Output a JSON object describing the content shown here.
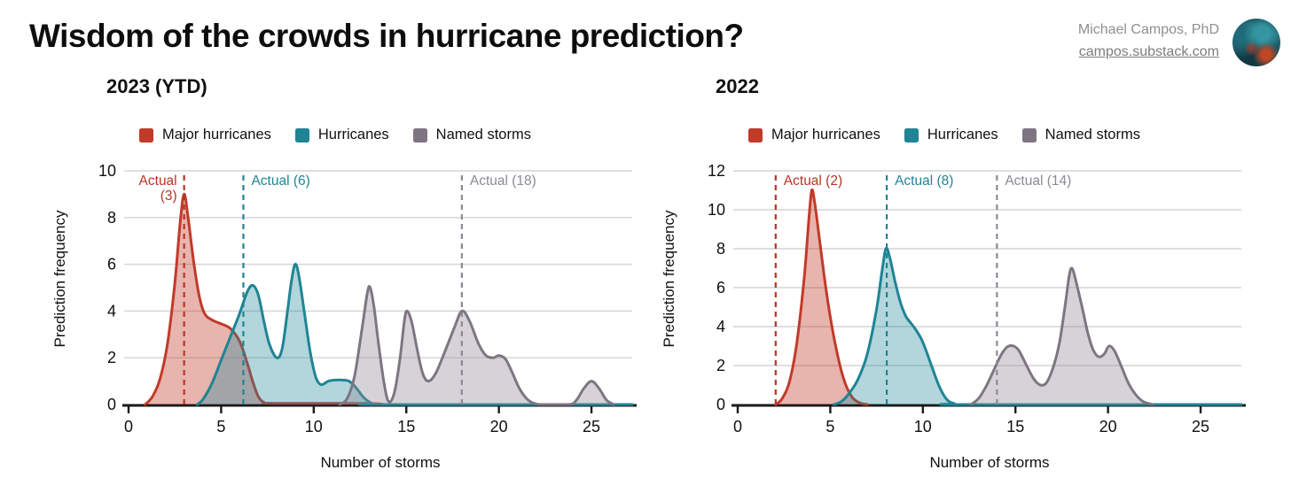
{
  "header": {
    "title": "Wisdom of the crowds in hurricane prediction?",
    "author": "Michael Campos, PhD",
    "site_link": "campos.substack.com",
    "avatar": "feather-pattern-avatar"
  },
  "colors": {
    "major_hurricanes": "#c13a2a",
    "hurricanes": "#1f8494",
    "named_storms": "#8a8390",
    "gridline": "#d4d4d4",
    "axis": "#1a1a1a"
  },
  "chart_data": [
    {
      "type": "area",
      "title": "2023 (YTD)",
      "xlabel": "Number of storms",
      "ylabel": "Prediction frequency",
      "xlim": [
        0,
        27.2
      ],
      "ylim": [
        0,
        10
      ],
      "xticks": [
        0,
        5,
        10,
        15,
        20,
        25
      ],
      "yticks": [
        0,
        2,
        4,
        6,
        8,
        10
      ],
      "grid": true,
      "legend_position": "top",
      "series": [
        {
          "name": "Major hurricanes",
          "color": "#c13a2a",
          "fill": "rgba(193,58,42,0.38)",
          "points": [
            [
              0.9,
              0
            ],
            [
              1.3,
              0.35
            ],
            [
              1.7,
              1.1
            ],
            [
              2.1,
              2.6
            ],
            [
              2.5,
              5.2
            ],
            [
              2.8,
              7.9
            ],
            [
              3,
              9
            ],
            [
              3.2,
              8.1
            ],
            [
              3.5,
              6.2
            ],
            [
              3.8,
              4.7
            ],
            [
              4.1,
              3.9
            ],
            [
              4.5,
              3.62
            ],
            [
              5,
              3.45
            ],
            [
              5.5,
              3.25
            ],
            [
              6,
              2.7
            ],
            [
              6.4,
              1.8
            ],
            [
              6.7,
              1
            ],
            [
              7,
              0.35
            ],
            [
              7.3,
              0.1
            ],
            [
              7.8,
              0.05
            ],
            [
              12.8,
              0.05
            ],
            [
              13.8,
              0
            ]
          ]
        },
        {
          "name": "Hurricanes",
          "color": "#1f8494",
          "fill": "rgba(33,137,154,0.35)",
          "points": [
            [
              3.7,
              0
            ],
            [
              4,
              0.2
            ],
            [
              4.5,
              0.9
            ],
            [
              5,
              1.9
            ],
            [
              5.5,
              2.9
            ],
            [
              6,
              3.9
            ],
            [
              6.4,
              4.8
            ],
            [
              6.7,
              5.1
            ],
            [
              7,
              4.7
            ],
            [
              7.3,
              3.6
            ],
            [
              7.6,
              2.6
            ],
            [
              8,
              2
            ],
            [
              8.3,
              2.4
            ],
            [
              8.6,
              4.1
            ],
            [
              8.8,
              5.3
            ],
            [
              9,
              6
            ],
            [
              9.2,
              5.5
            ],
            [
              9.5,
              3.9
            ],
            [
              9.8,
              2.3
            ],
            [
              10.1,
              1.2
            ],
            [
              10.4,
              0.85
            ],
            [
              10.8,
              1
            ],
            [
              11.3,
              1.05
            ],
            [
              11.9,
              1
            ],
            [
              12.3,
              0.7
            ],
            [
              12.7,
              0.3
            ],
            [
              13.1,
              0.07
            ],
            [
              13.6,
              0
            ],
            [
              27.2,
              0
            ]
          ]
        },
        {
          "name": "Named storms",
          "color": "#7d7682",
          "fill": "rgba(146,140,152,0.38)",
          "points": [
            [
              11.4,
              0
            ],
            [
              11.8,
              0.25
            ],
            [
              12.2,
              1.2
            ],
            [
              12.6,
              3.2
            ],
            [
              12.9,
              4.8
            ],
            [
              13.05,
              5
            ],
            [
              13.25,
              4.2
            ],
            [
              13.5,
              2.6
            ],
            [
              13.8,
              0.9
            ],
            [
              14.05,
              0.12
            ],
            [
              14.35,
              0.5
            ],
            [
              14.65,
              1.9
            ],
            [
              14.9,
              3.6
            ],
            [
              15.05,
              4
            ],
            [
              15.3,
              3.5
            ],
            [
              15.6,
              2.3
            ],
            [
              15.9,
              1.3
            ],
            [
              16.2,
              1
            ],
            [
              16.6,
              1.35
            ],
            [
              17.1,
              2.3
            ],
            [
              17.6,
              3.3
            ],
            [
              18,
              4
            ],
            [
              18.4,
              3.6
            ],
            [
              18.9,
              2.6
            ],
            [
              19.3,
              2.1
            ],
            [
              19.7,
              2
            ],
            [
              20,
              2.1
            ],
            [
              20.35,
              1.95
            ],
            [
              20.7,
              1.4
            ],
            [
              21.1,
              0.7
            ],
            [
              21.5,
              0.25
            ],
            [
              21.9,
              0.05
            ],
            [
              22.4,
              0
            ],
            [
              23.8,
              0
            ],
            [
              24.2,
              0.2
            ],
            [
              24.6,
              0.7
            ],
            [
              25,
              1
            ],
            [
              25.4,
              0.7
            ],
            [
              25.8,
              0.2
            ],
            [
              26.2,
              0
            ]
          ]
        }
      ],
      "actual_lines": [
        {
          "value": 3,
          "line_x": 3,
          "label_lines": [
            "Actual",
            "(3)"
          ],
          "side": "left",
          "color": "#b93425"
        },
        {
          "value": 6,
          "line_x": 6.2,
          "label_lines": [
            "Actual (6)"
          ],
          "side": "right",
          "color": "#1f8494"
        },
        {
          "value": 18,
          "line_x": 18,
          "label_lines": [
            "Actual (18)"
          ],
          "side": "right",
          "color": "#8e8894"
        }
      ]
    },
    {
      "type": "area",
      "title": "2022",
      "xlabel": "Number of storms",
      "ylabel": "Prediction frequency",
      "xlim": [
        0,
        27.2
      ],
      "ylim": [
        0,
        12
      ],
      "xticks": [
        0,
        5,
        10,
        15,
        20,
        25
      ],
      "yticks": [
        0,
        2,
        4,
        6,
        8,
        10,
        12
      ],
      "grid": true,
      "legend_position": "top",
      "series": [
        {
          "name": "Major hurricanes",
          "color": "#c13a2a",
          "fill": "rgba(193,58,42,0.38)",
          "points": [
            [
              2.05,
              0
            ],
            [
              2.4,
              0.3
            ],
            [
              2.8,
              1.2
            ],
            [
              3.2,
              3.2
            ],
            [
              3.6,
              6.6
            ],
            [
              3.85,
              9.6
            ],
            [
              4,
              11
            ],
            [
              4.15,
              10.4
            ],
            [
              4.4,
              8.6
            ],
            [
              4.7,
              6.4
            ],
            [
              5,
              4.5
            ],
            [
              5.4,
              2.5
            ],
            [
              5.8,
              1.1
            ],
            [
              6.2,
              0.35
            ],
            [
              6.6,
              0.08
            ],
            [
              7,
              0
            ]
          ]
        },
        {
          "name": "Hurricanes",
          "color": "#1f8494",
          "fill": "rgba(33,137,154,0.35)",
          "points": [
            [
              5.2,
              0
            ],
            [
              5.6,
              0.15
            ],
            [
              6,
              0.55
            ],
            [
              6.5,
              1.3
            ],
            [
              7,
              2.6
            ],
            [
              7.5,
              4.9
            ],
            [
              7.8,
              6.9
            ],
            [
              8,
              8
            ],
            [
              8.2,
              7.6
            ],
            [
              8.5,
              6.3
            ],
            [
              8.8,
              5.2
            ],
            [
              9.1,
              4.5
            ],
            [
              9.5,
              4
            ],
            [
              9.9,
              3.4
            ],
            [
              10.2,
              2.7
            ],
            [
              10.5,
              1.9
            ],
            [
              10.9,
              0.9
            ],
            [
              11.3,
              0.25
            ],
            [
              11.7,
              0.05
            ],
            [
              12.2,
              0
            ],
            [
              27.2,
              0
            ]
          ]
        },
        {
          "name": "Named storms",
          "color": "#7d7682",
          "fill": "rgba(146,140,152,0.38)",
          "points": [
            [
              12.6,
              0
            ],
            [
              13,
              0.3
            ],
            [
              13.4,
              0.9
            ],
            [
              13.8,
              1.7
            ],
            [
              14.2,
              2.5
            ],
            [
              14.55,
              2.95
            ],
            [
              14.9,
              3
            ],
            [
              15.2,
              2.75
            ],
            [
              15.6,
              2
            ],
            [
              16,
              1.3
            ],
            [
              16.35,
              1
            ],
            [
              16.7,
              1.15
            ],
            [
              17.1,
              2.1
            ],
            [
              17.4,
              3.3
            ],
            [
              17.7,
              5.2
            ],
            [
              17.9,
              6.6
            ],
            [
              18.05,
              7
            ],
            [
              18.25,
              6.4
            ],
            [
              18.6,
              5
            ],
            [
              18.9,
              3.7
            ],
            [
              19.2,
              2.8
            ],
            [
              19.5,
              2.45
            ],
            [
              19.8,
              2.6
            ],
            [
              20.05,
              3
            ],
            [
              20.35,
              2.75
            ],
            [
              20.7,
              2
            ],
            [
              21.1,
              1.1
            ],
            [
              21.5,
              0.5
            ],
            [
              21.9,
              0.15
            ],
            [
              22.4,
              0
            ]
          ]
        }
      ],
      "actual_lines": [
        {
          "value": 2,
          "line_x": 2.05,
          "label_lines": [
            "Actual (2)"
          ],
          "side": "right",
          "color": "#b93425"
        },
        {
          "value": 8,
          "line_x": 8.05,
          "label_lines": [
            "Actual (8)"
          ],
          "side": "right",
          "color": "#1f8494"
        },
        {
          "value": 14,
          "line_x": 14,
          "label_lines": [
            "Actual (14)"
          ],
          "side": "right",
          "color": "#8e8894"
        }
      ]
    }
  ]
}
